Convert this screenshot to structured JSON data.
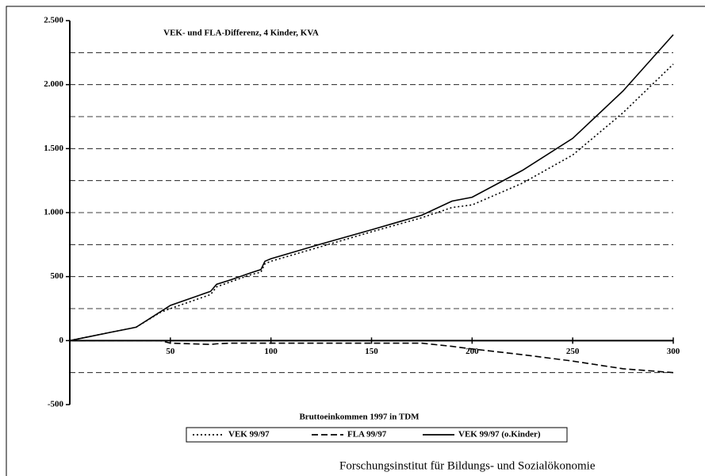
{
  "chart_data": {
    "type": "line",
    "title": "VEK- und FLA-Differenz, 4 Kinder, KVA",
    "x_label": "Bruttoeinkommen 1997 in TDM",
    "source": "Forschungsinstitut für Bildungs- und Sozialökonomie",
    "x": [
      0,
      10,
      20,
      30,
      33,
      45,
      50,
      60,
      70,
      73,
      80,
      90,
      95,
      97,
      100,
      125,
      150,
      175,
      190,
      200,
      225,
      250,
      275,
      300
    ],
    "series": [
      {
        "name": "VEK 99/97",
        "color": "#000000",
        "dash": "dotted",
        "values": [
          0,
          32,
          64,
          95,
          105,
          220,
          250,
          305,
          360,
          420,
          460,
          515,
          535,
          600,
          620,
          735,
          850,
          960,
          1040,
          1060,
          1230,
          1450,
          1780,
          2160
        ]
      },
      {
        "name": "FLA 99/97",
        "color": "#000000",
        "dash": "dashed",
        "values": [
          0,
          0,
          0,
          0,
          0,
          0,
          -20,
          -25,
          -30,
          -25,
          -20,
          -20,
          -20,
          -20,
          -20,
          -20,
          -20,
          -20,
          -45,
          -65,
          -110,
          -160,
          -220,
          -250
        ]
      },
      {
        "name": "VEK 99/97 (o.Kinder)",
        "color": "#000000",
        "dash": "solid",
        "values": [
          0,
          32,
          64,
          95,
          105,
          225,
          275,
          330,
          385,
          440,
          475,
          530,
          555,
          620,
          640,
          755,
          866,
          980,
          1090,
          1120,
          1330,
          1580,
          1950,
          2390
        ]
      }
    ],
    "xlim": [
      0,
      300
    ],
    "xticks": [
      50,
      100,
      150,
      200,
      250,
      300
    ],
    "ylim": [
      -500,
      2500
    ],
    "yticks": [
      {
        "value": -500,
        "label": "-500"
      },
      0,
      500,
      {
        "value": 1000,
        "label": "1.000"
      },
      {
        "value": 1500,
        "label": "1.500"
      },
      {
        "value": 2000,
        "label": "2.000"
      },
      {
        "value": 2500,
        "label": "2.500"
      }
    ],
    "y_minor_grid": [
      -250,
      250,
      750,
      1250,
      1750,
      2250
    ],
    "grid": true,
    "legend": "bottom"
  }
}
